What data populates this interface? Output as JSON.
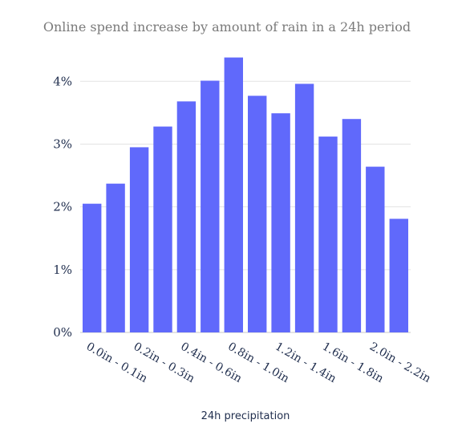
{
  "chart_data": {
    "type": "bar",
    "title": "Online spend increase by amount of rain in a 24h period",
    "xlabel": "24h precipitation",
    "ylabel": "",
    "ylim": [
      0,
      4.4
    ],
    "yticks": [
      "0%",
      "1%",
      "2%",
      "3%",
      "4%"
    ],
    "ytick_values": [
      0,
      1,
      2,
      3,
      4
    ],
    "grid": true,
    "bar_color": "#6069fb",
    "categories": [
      "0.0in - 0.1in",
      "",
      "0.2in - 0.3in",
      "",
      "0.4in - 0.6in",
      "",
      "0.8in - 1.0in",
      "",
      "1.2in - 1.4in",
      "",
      "1.6in - 1.8in",
      "",
      "2.0in - 2.2in",
      ""
    ],
    "values": [
      2.05,
      2.37,
      2.95,
      3.28,
      3.68,
      4.01,
      4.38,
      3.77,
      3.49,
      3.96,
      3.12,
      3.4,
      2.64,
      1.81
    ]
  }
}
